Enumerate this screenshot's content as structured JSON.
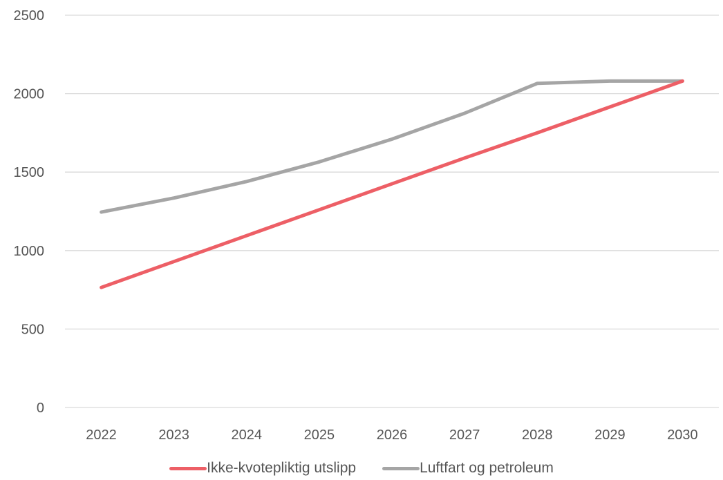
{
  "chart_data": {
    "type": "line",
    "title": "",
    "xlabel": "",
    "ylabel": "",
    "categories": [
      "2022",
      "2023",
      "2024",
      "2025",
      "2026",
      "2027",
      "2028",
      "2029",
      "2030"
    ],
    "ylim": [
      0,
      2500
    ],
    "yticks": [
      "0",
      "500",
      "1000",
      "1500",
      "2000",
      "2500"
    ],
    "grid": true,
    "legend_position": "bottom",
    "series": [
      {
        "name": "Ikke-kvotepliktig utslipp",
        "color": "#ed5f66",
        "values": [
          765,
          930,
          1095,
          1260,
          1425,
          1590,
          1750,
          1915,
          2080
        ]
      },
      {
        "name": "Luftfart og petroleum",
        "color": "#a5a5a5",
        "values": [
          1245,
          1335,
          1440,
          1565,
          1710,
          1875,
          2065,
          2080,
          2080
        ]
      }
    ]
  }
}
